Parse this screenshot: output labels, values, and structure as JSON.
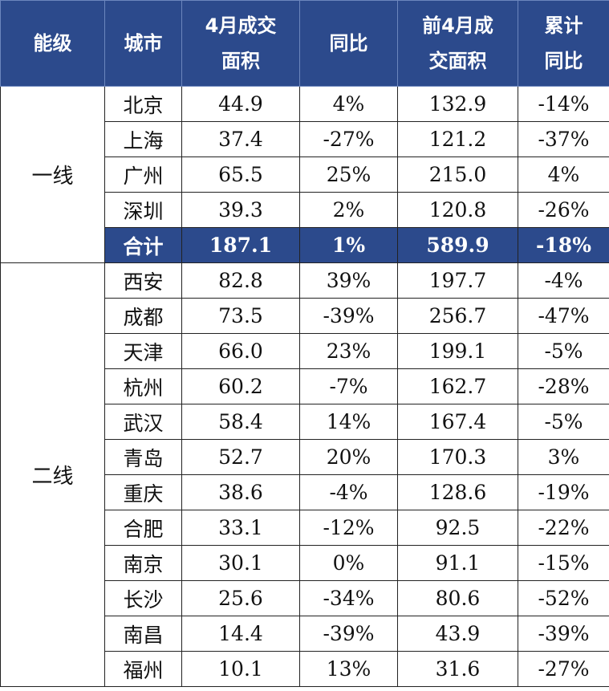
{
  "table": {
    "header": [
      [
        "能级"
      ],
      [
        "城市"
      ],
      [
        "4月成交",
        "面积"
      ],
      [
        "同比"
      ],
      [
        "前4月成",
        "交面积"
      ],
      [
        "累计",
        "同比"
      ]
    ],
    "tiers": [
      {
        "label": "一线",
        "rows": [
          [
            "北京",
            "44.9",
            "4%",
            "132.9",
            "-14%"
          ],
          [
            "上海",
            "37.4",
            "-27%",
            "121.2",
            "-37%"
          ],
          [
            "广州",
            "65.5",
            "25%",
            "215.0",
            "4%"
          ],
          [
            "深圳",
            "39.3",
            "2%",
            "120.8",
            "-26%"
          ]
        ],
        "total": [
          "合计",
          "187.1",
          "1%",
          "589.9",
          "-18%"
        ]
      },
      {
        "label": "二线",
        "rows": [
          [
            "西安",
            "82.8",
            "39%",
            "197.7",
            "-4%"
          ],
          [
            "成都",
            "73.5",
            "-39%",
            "256.7",
            "-47%"
          ],
          [
            "天津",
            "66.0",
            "23%",
            "199.1",
            "-5%"
          ],
          [
            "杭州",
            "60.2",
            "-7%",
            "162.7",
            "-28%"
          ],
          [
            "武汉",
            "58.4",
            "14%",
            "167.4",
            "-5%"
          ],
          [
            "青岛",
            "52.7",
            "20%",
            "170.3",
            "3%"
          ],
          [
            "重庆",
            "38.6",
            "-4%",
            "128.6",
            "-19%"
          ],
          [
            "合肥",
            "33.1",
            "-12%",
            "92.5",
            "-22%"
          ],
          [
            "南京",
            "30.1",
            "0%",
            "91.1",
            "-15%"
          ],
          [
            "长沙",
            "25.6",
            "-34%",
            "80.6",
            "-52%"
          ],
          [
            "南昌",
            "14.4",
            "-39%",
            "43.9",
            "-39%"
          ],
          [
            "福州",
            "10.1",
            "13%",
            "31.6",
            "-27%"
          ]
        ]
      }
    ]
  }
}
